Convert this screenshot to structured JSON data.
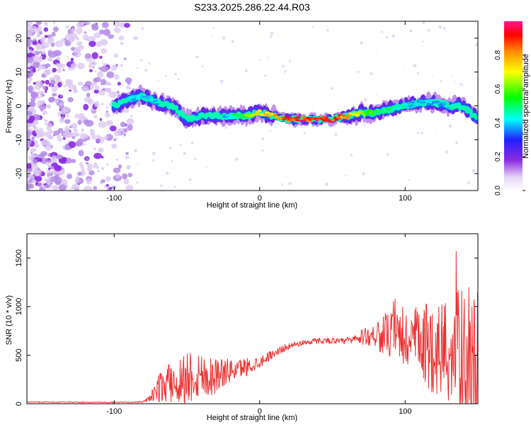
{
  "title": "S233.2025.286.22.44.R03",
  "chart_data": [
    {
      "type": "heatmap",
      "xlabel": "Height of straight line (km)",
      "ylabel": "Frequency (Hz)",
      "xlim": [
        -160,
        150
      ],
      "ylim": [
        -25,
        25
      ],
      "x_ticks": [
        -100,
        0,
        100
      ],
      "x_tick_labels": [
        "-100",
        "0",
        "100"
      ],
      "y_ticks": [
        -20,
        -10,
        0,
        10,
        20
      ],
      "y_tick_labels": [
        "-20",
        "-10",
        "0",
        "10",
        "20"
      ],
      "colorbar": {
        "label": "Normalized spectral amplitude",
        "range": [
          0,
          1
        ],
        "ticks": [
          0.0,
          0.2,
          0.4,
          0.6,
          0.8
        ],
        "tick_labels": [
          "0.0",
          "0.2",
          "0.4",
          "0.6",
          "0.8"
        ],
        "colors": [
          "#ffffff",
          "#e6d4f5",
          "#8a2be2",
          "#2020ff",
          "#00ffff",
          "#00ff00",
          "#ffff00",
          "#ff8c00",
          "#ff0000",
          "#ff1493"
        ]
      },
      "noise_region_x": [
        -160,
        -85
      ],
      "signal_track": {
        "x": [
          -100,
          -90,
          -80,
          -70,
          -60,
          -50,
          -40,
          -30,
          -20,
          -10,
          0,
          10,
          20,
          30,
          40,
          50,
          60,
          70,
          80,
          90,
          100,
          110,
          120,
          130,
          140,
          150
        ],
        "freq": [
          0,
          2,
          3,
          1,
          0,
          -4,
          -3,
          -3,
          -3,
          -3,
          -2,
          -3,
          -4,
          -4,
          -4,
          -4,
          -3,
          -2,
          -2,
          -1,
          0,
          1,
          1,
          0,
          0,
          -4
        ],
        "amplitude": [
          0.3,
          0.4,
          0.45,
          0.4,
          0.35,
          0.35,
          0.35,
          0.35,
          0.45,
          0.6,
          0.75,
          0.8,
          0.95,
          0.95,
          0.95,
          0.95,
          0.8,
          0.65,
          0.55,
          0.5,
          0.45,
          0.4,
          0.4,
          0.4,
          0.35,
          0.35
        ]
      }
    },
    {
      "type": "line",
      "xlabel": "Height of straight line (km)",
      "ylabel": "SNR (10 * v/v)",
      "xlim": [
        -160,
        150
      ],
      "ylim": [
        0,
        1750
      ],
      "x_ticks": [
        -100,
        0,
        100
      ],
      "x_tick_labels": [
        "-100",
        "0",
        "100"
      ],
      "y_ticks": [
        0,
        500,
        1000,
        1500
      ],
      "y_tick_labels": [
        "0",
        "500",
        "1000",
        "1500"
      ],
      "color": "#ee3030",
      "series": [
        {
          "name": "SNR",
          "x": [
            -160,
            -140,
            -120,
            -100,
            -90,
            -80,
            -75,
            -70,
            -65,
            -60,
            -55,
            -50,
            -45,
            -40,
            -35,
            -30,
            -25,
            -20,
            -15,
            -10,
            -5,
            0,
            5,
            10,
            15,
            20,
            25,
            30,
            35,
            40,
            45,
            50,
            55,
            60,
            65,
            70,
            75,
            80,
            85,
            90,
            95,
            100,
            105,
            110,
            115,
            120,
            125,
            130,
            135,
            140,
            145,
            150
          ],
          "y": [
            18,
            16,
            15,
            14,
            15,
            20,
            60,
            150,
            200,
            220,
            240,
            280,
            300,
            300,
            280,
            300,
            320,
            340,
            360,
            380,
            400,
            430,
            480,
            520,
            560,
            590,
            610,
            630,
            640,
            650,
            650,
            650,
            640,
            650,
            660,
            680,
            700,
            720,
            700,
            700,
            680,
            650,
            650,
            620,
            600,
            580,
            560,
            540,
            520,
            500,
            480,
            460
          ],
          "spread": [
            5,
            5,
            5,
            5,
            5,
            8,
            40,
            150,
            180,
            220,
            250,
            300,
            280,
            250,
            220,
            200,
            150,
            120,
            100,
            100,
            80,
            60,
            50,
            40,
            40,
            30,
            30,
            30,
            30,
            30,
            30,
            30,
            30,
            40,
            60,
            80,
            100,
            150,
            200,
            250,
            300,
            350,
            350,
            400,
            450,
            500,
            550,
            600,
            650,
            700,
            800,
            700
          ]
        }
      ]
    }
  ]
}
